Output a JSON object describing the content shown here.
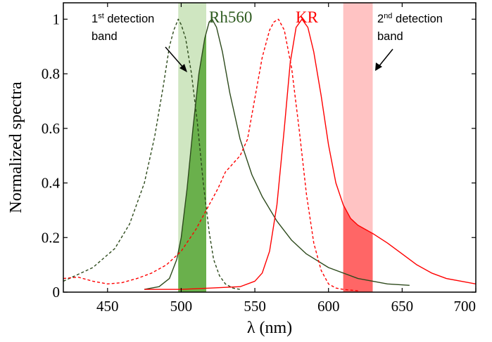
{
  "chart_data": {
    "type": "line",
    "xlabel": "λ (nm)",
    "ylabel": "Normalized spectra",
    "xlim": [
      420,
      700
    ],
    "ylim": [
      0,
      1.06
    ],
    "x_ticks": [
      450,
      500,
      550,
      600,
      650,
      700
    ],
    "y_ticks": [
      0,
      0.2,
      0.4,
      0.6,
      0.8,
      1
    ],
    "y_tick_labels": [
      "0",
      "0.2",
      "0.4",
      "0.6",
      "0.8",
      "1"
    ],
    "grid": false,
    "series": [
      {
        "id": "rh560-excitation",
        "color": "#2d4a1c",
        "dash": "dashed",
        "x": [
          420,
          440,
          455,
          465,
          475,
          482,
          488,
          492,
          495,
          498,
          500,
          503,
          507,
          511,
          515,
          519,
          522,
          526,
          530,
          535,
          540
        ],
        "y": [
          0.04,
          0.09,
          0.16,
          0.25,
          0.4,
          0.57,
          0.76,
          0.9,
          0.96,
          1.0,
          0.98,
          0.93,
          0.8,
          0.62,
          0.4,
          0.22,
          0.12,
          0.06,
          0.03,
          0.015,
          0.01
        ]
      },
      {
        "id": "rh560-emission",
        "color": "#2d4a1c",
        "dash": "solid",
        "x": [
          475,
          485,
          492,
          497,
          500,
          504,
          508,
          512,
          516,
          519,
          521,
          524,
          528,
          533,
          540,
          548,
          555,
          565,
          575,
          585,
          600,
          620,
          640,
          655
        ],
        "y": [
          0.01,
          0.02,
          0.05,
          0.12,
          0.2,
          0.38,
          0.6,
          0.8,
          0.93,
          0.99,
          1.0,
          0.97,
          0.88,
          0.73,
          0.56,
          0.43,
          0.35,
          0.26,
          0.19,
          0.14,
          0.09,
          0.05,
          0.03,
          0.025
        ]
      },
      {
        "id": "kr-excitation",
        "color": "#ff0000",
        "dash": "dashed",
        "x": [
          420,
          430,
          440,
          450,
          460,
          470,
          480,
          490,
          500,
          510,
          515,
          520,
          525,
          530,
          535,
          540,
          545,
          550,
          555,
          560,
          563,
          566,
          570,
          575,
          580,
          585,
          590,
          595,
          600,
          605,
          610,
          620
        ],
        "y": [
          0.05,
          0.055,
          0.04,
          0.03,
          0.035,
          0.05,
          0.07,
          0.1,
          0.15,
          0.23,
          0.28,
          0.33,
          0.38,
          0.44,
          0.47,
          0.5,
          0.56,
          0.71,
          0.86,
          0.96,
          0.99,
          1.0,
          0.96,
          0.82,
          0.6,
          0.36,
          0.18,
          0.08,
          0.03,
          0.015,
          0.01,
          0.005
        ]
      },
      {
        "id": "kr-emission",
        "color": "#ff0000",
        "dash": "solid",
        "x": [
          475,
          500,
          520,
          540,
          550,
          555,
          560,
          565,
          570,
          574,
          578,
          582,
          586,
          590,
          595,
          600,
          605,
          610,
          615,
          620,
          625,
          630,
          640,
          650,
          660,
          670,
          680,
          690,
          700
        ],
        "y": [
          0.01,
          0.01,
          0.015,
          0.02,
          0.04,
          0.07,
          0.15,
          0.32,
          0.6,
          0.84,
          0.97,
          1.0,
          0.97,
          0.88,
          0.72,
          0.54,
          0.4,
          0.32,
          0.27,
          0.245,
          0.23,
          0.215,
          0.18,
          0.14,
          0.1,
          0.07,
          0.05,
          0.04,
          0.03
        ]
      }
    ],
    "bands": [
      {
        "id": "band-1",
        "x0": 498,
        "x1": 517,
        "color_dark": "#6ab04c",
        "color_light": "#cfe6c1"
      },
      {
        "id": "band-2",
        "x0": 610,
        "x1": 630,
        "color_dark": "#ff6666",
        "color_light": "#ffc3c3"
      }
    ],
    "annotations": {
      "rh560": {
        "text": "Rh560",
        "color": "#2d5a1e"
      },
      "kr": {
        "text": "KR",
        "color": "#ff0000"
      },
      "band1_ordinal": "1",
      "band1_sup": "st",
      "band1_line1_rest": " detection",
      "band1_line2": "band",
      "band2_ordinal": "2",
      "band2_sup": "nd",
      "band2_line1_rest": " detection",
      "band2_line2": "band"
    }
  }
}
